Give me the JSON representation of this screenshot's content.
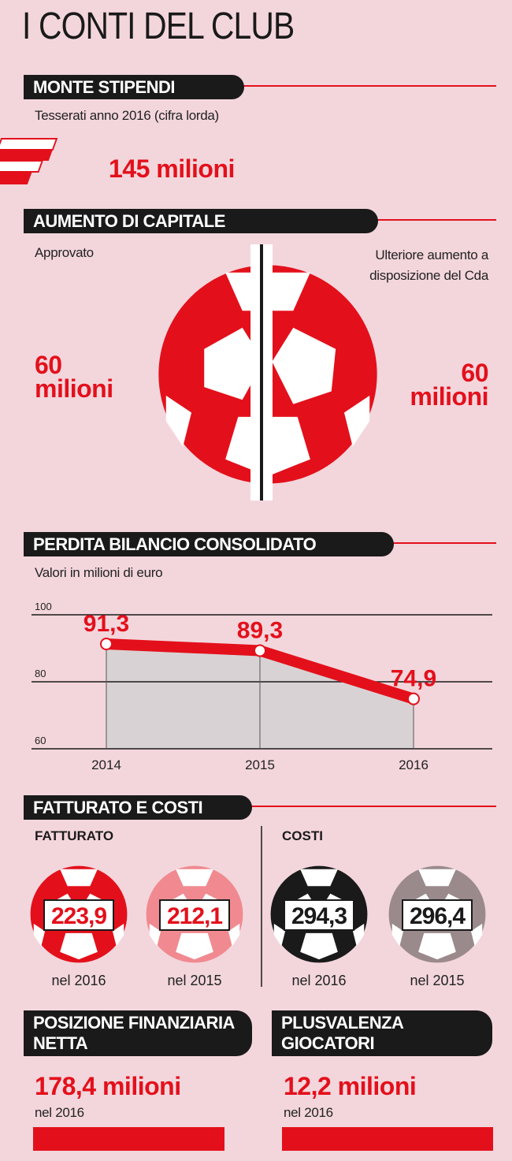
{
  "title": "I CONTI DEL CLUB",
  "monte_stipendi": {
    "heading": "MONTE STIPENDI",
    "subtitle": "Tesserati anno 2016 (cifra lorda)",
    "value": "145 milioni"
  },
  "aumento_di_capitale": {
    "heading": "AUMENTO DI CAPITALE",
    "left": {
      "label": "Approvato",
      "number": "60",
      "unit": "milioni"
    },
    "right": {
      "label": "Ulteriore aumento a disposizione del Cda",
      "number": "60",
      "unit": "milioni"
    }
  },
  "chart_data": {
    "type": "line",
    "title": "PERDITA BILANCIO CONSOLIDATO",
    "subtitle": "Valori in milioni di euro",
    "categories": [
      "2014",
      "2015",
      "2016"
    ],
    "values": [
      91.3,
      89.3,
      74.9
    ],
    "value_labels": [
      "91,3",
      "89,3",
      "74,9"
    ],
    "color": "#e3101b",
    "ylim": [
      60,
      100
    ],
    "yticks": [
      60,
      80,
      100
    ],
    "grid": true
  },
  "fatturato_e_costi": {
    "heading": "FATTURATO E COSTI",
    "fatturato": {
      "label": "FATTURATO",
      "items": [
        {
          "value": "223,9",
          "year": "nel 2016"
        },
        {
          "value": "212,1",
          "year": "nel 2015"
        }
      ]
    },
    "costi": {
      "label": "COSTI",
      "items": [
        {
          "value": "294,3",
          "year": "nel 2016"
        },
        {
          "value": "296,4",
          "year": "nel 2015"
        }
      ]
    }
  },
  "posizione_finanziaria_netta": {
    "heading": "POSIZIONE FINANZIARIA NETTA",
    "value": "178,4 milioni",
    "year": "nel 2016"
  },
  "plusvalenza_giocatori": {
    "heading": "PLUSVALENZA GIOCATORI",
    "value": "12,2 milioni",
    "year": "nel 2016"
  }
}
